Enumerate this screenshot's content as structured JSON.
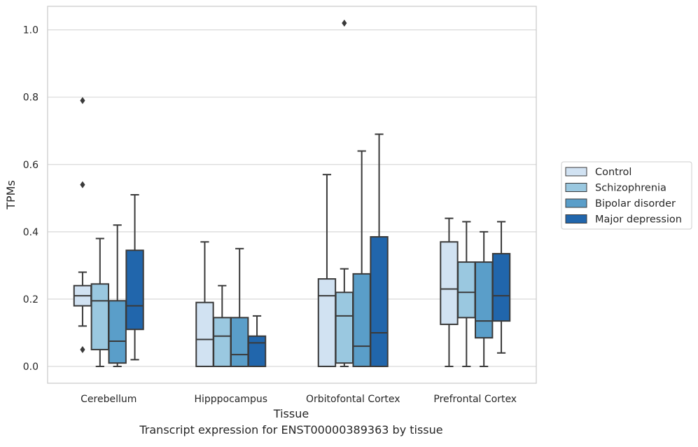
{
  "chart_data": {
    "type": "box",
    "title": "",
    "caption": "Transcript expression for ENST00000389363 by tissue",
    "xlabel": "Tissue",
    "ylabel": "TPMs",
    "ylim": [
      -0.05,
      1.07
    ],
    "yticks": [
      0.0,
      0.2,
      0.4,
      0.6,
      0.8,
      1.0
    ],
    "ytick_labels": [
      "0.0",
      "0.2",
      "0.4",
      "0.6",
      "0.8",
      "1.0"
    ],
    "grid": "horizontal",
    "legend_position": "right",
    "categories": [
      "Cerebellum",
      "Hipppocampus",
      "Orbitofontal Cortex",
      "Prefrontal Cortex"
    ],
    "series": [
      {
        "name": "Control",
        "color": "#d1e2f2",
        "boxes": [
          {
            "whislo": 0.12,
            "q1": 0.18,
            "med": 0.21,
            "q3": 0.24,
            "whishi": 0.28,
            "fliers": [
              0.05,
              0.54,
              0.79
            ]
          },
          {
            "whislo": 0.0,
            "q1": 0.0,
            "med": 0.08,
            "q3": 0.19,
            "whishi": 0.37,
            "fliers": []
          },
          {
            "whislo": 0.0,
            "q1": 0.0,
            "med": 0.21,
            "q3": 0.26,
            "whishi": 0.57,
            "fliers": []
          },
          {
            "whislo": 0.0,
            "q1": 0.125,
            "med": 0.23,
            "q3": 0.37,
            "whishi": 0.44,
            "fliers": []
          }
        ]
      },
      {
        "name": "Schizophrenia",
        "color": "#9ac8e0",
        "boxes": [
          {
            "whislo": 0.0,
            "q1": 0.05,
            "med": 0.195,
            "q3": 0.245,
            "whishi": 0.38,
            "fliers": []
          },
          {
            "whislo": 0.0,
            "q1": 0.0,
            "med": 0.09,
            "q3": 0.145,
            "whishi": 0.24,
            "fliers": []
          },
          {
            "whislo": 0.0,
            "q1": 0.01,
            "med": 0.15,
            "q3": 0.22,
            "whishi": 0.29,
            "fliers": [
              1.02
            ]
          },
          {
            "whislo": 0.0,
            "q1": 0.145,
            "med": 0.22,
            "q3": 0.31,
            "whishi": 0.43,
            "fliers": []
          }
        ]
      },
      {
        "name": "Bipolar disorder",
        "color": "#5a9ec9",
        "boxes": [
          {
            "whislo": 0.0,
            "q1": 0.01,
            "med": 0.075,
            "q3": 0.195,
            "whishi": 0.42,
            "fliers": []
          },
          {
            "whislo": 0.0,
            "q1": 0.0,
            "med": 0.035,
            "q3": 0.145,
            "whishi": 0.35,
            "fliers": []
          },
          {
            "whislo": 0.0,
            "q1": 0.0,
            "med": 0.06,
            "q3": 0.275,
            "whishi": 0.64,
            "fliers": []
          },
          {
            "whislo": 0.0,
            "q1": 0.085,
            "med": 0.135,
            "q3": 0.31,
            "whishi": 0.4,
            "fliers": []
          }
        ]
      },
      {
        "name": "Major depression",
        "color": "#2166ac",
        "boxes": [
          {
            "whislo": 0.02,
            "q1": 0.11,
            "med": 0.18,
            "q3": 0.345,
            "whishi": 0.51,
            "fliers": []
          },
          {
            "whislo": 0.0,
            "q1": 0.0,
            "med": 0.07,
            "q3": 0.09,
            "whishi": 0.15,
            "fliers": []
          },
          {
            "whislo": 0.0,
            "q1": 0.0,
            "med": 0.1,
            "q3": 0.385,
            "whishi": 0.69,
            "fliers": []
          },
          {
            "whislo": 0.04,
            "q1": 0.135,
            "med": 0.21,
            "q3": 0.335,
            "whishi": 0.43,
            "fliers": []
          }
        ]
      }
    ]
  }
}
